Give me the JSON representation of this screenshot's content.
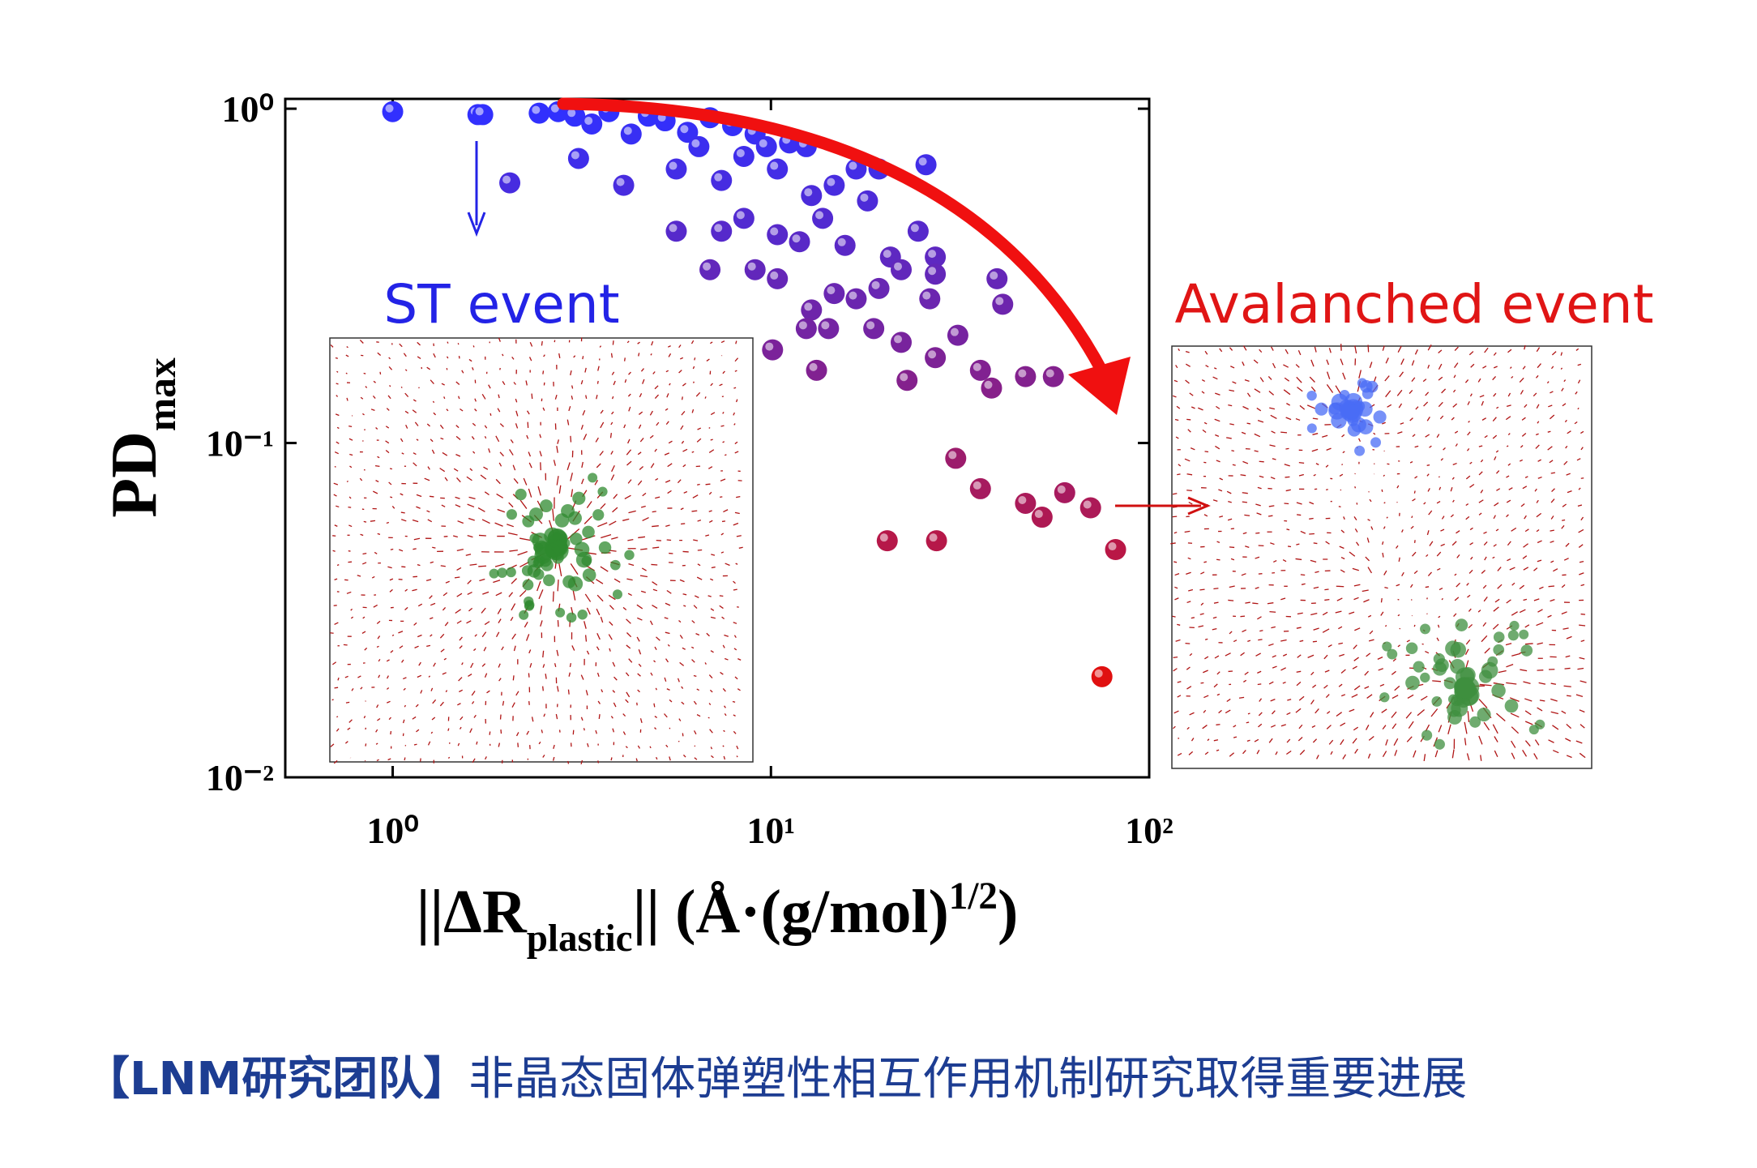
{
  "chart_data": {
    "type": "scatter",
    "x_label": [
      {
        "text": "||ΔR"
      },
      {
        "text": "plastic",
        "sub": true
      },
      {
        "text": "|| (Å·(g/mol)"
      },
      {
        "text": "1/2",
        "sup": true
      },
      {
        "text": ")"
      }
    ],
    "y_label": [
      {
        "text": "PD"
      },
      {
        "text": "max",
        "sub": true
      }
    ],
    "log_x": true,
    "log_y": true,
    "xlim": [
      0.52,
      100
    ],
    "ylim": [
      0.01,
      1.07
    ],
    "xticks": [
      {
        "value": 1,
        "label": "10⁰"
      },
      {
        "value": 10,
        "label": "10¹"
      },
      {
        "value": 100,
        "label": "10²"
      }
    ],
    "yticks": [
      {
        "value": 0.01,
        "label": "10⁻²"
      },
      {
        "value": 0.1,
        "label": "10⁻¹"
      },
      {
        "value": 1,
        "label": "10⁰"
      }
    ],
    "colormap": [
      "#e01010",
      "#3030ff"
    ],
    "x": [
      1.0,
      1.68,
      1.73,
      2.04,
      2.44,
      2.74,
      3.03,
      3.1,
      3.36,
      3.73,
      4.08,
      4.27,
      4.74,
      5.25,
      5.62,
      6.02,
      6.45,
      6.9,
      7.4,
      7.92,
      8.48,
      9.08,
      9.73,
      10.4,
      11.2,
      12.4,
      12.8,
      14.7,
      16.8,
      19.3,
      25.7,
      5.62,
      7.4,
      8.48,
      10.4,
      11.9,
      13.7,
      15.7,
      18.0,
      20.7,
      24.5,
      27.2,
      6.9,
      9.08,
      10.4,
      12.8,
      14.7,
      16.8,
      19.3,
      22.1,
      26.3,
      27.2,
      39.6,
      41.0,
      10.1,
      12.4,
      14.2,
      18.7,
      22.1,
      27.2,
      31.2,
      13.2,
      22.9,
      38.3,
      47.1,
      55.8,
      35.8,
      30.8,
      35.8,
      47.1,
      52.1,
      59.8,
      70.0,
      20.3,
      27.4,
      81.5,
      75.0
    ],
    "y": [
      0.98,
      0.96,
      0.96,
      0.6,
      0.97,
      0.98,
      0.95,
      0.71,
      0.9,
      0.98,
      0.59,
      0.84,
      0.95,
      0.92,
      0.66,
      0.85,
      0.77,
      0.94,
      0.61,
      0.89,
      0.72,
      0.84,
      0.77,
      0.66,
      0.79,
      0.77,
      0.55,
      0.59,
      0.66,
      0.66,
      0.68,
      0.43,
      0.43,
      0.47,
      0.42,
      0.4,
      0.47,
      0.39,
      0.53,
      0.36,
      0.43,
      0.36,
      0.33,
      0.33,
      0.31,
      0.25,
      0.28,
      0.27,
      0.29,
      0.33,
      0.27,
      0.32,
      0.31,
      0.26,
      0.19,
      0.22,
      0.22,
      0.22,
      0.2,
      0.18,
      0.21,
      0.165,
      0.154,
      0.146,
      0.158,
      0.158,
      0.165,
      0.09,
      0.073,
      0.066,
      0.06,
      0.071,
      0.064,
      0.051,
      0.051,
      0.048,
      0.02
    ],
    "annotations": [
      "ST event",
      "Avalanched event"
    ],
    "caption_bold": "【LNM研究团队】",
    "caption": "非晶态固体弹塑性相互作用机制研究取得重要进展"
  }
}
